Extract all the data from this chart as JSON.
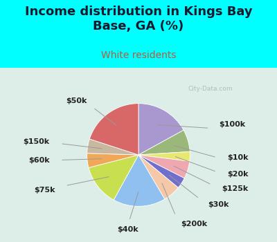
{
  "title": "Income distribution in Kings Bay\nBase, GA (%)",
  "subtitle": "White residents",
  "bg_color": "#00FFFF",
  "chart_bg_top": "#e0f0ee",
  "chart_bg_bottom": "#f5faf5",
  "title_color": "#1a1a2e",
  "subtitle_color": "#b06040",
  "watermark": "City-Data.com",
  "labels": [
    "$100k",
    "$10k",
    "$20k",
    "$125k",
    "$30k",
    "$200k",
    "$40k",
    "$75k",
    "$60k",
    "$150k",
    "$50k"
  ],
  "sizes": [
    17.0,
    7.0,
    3.0,
    5.5,
    3.5,
    5.5,
    16.5,
    13.0,
    4.5,
    4.5,
    20.0
  ],
  "colors": [
    "#a998d0",
    "#9ab87a",
    "#e8e870",
    "#f0a8b0",
    "#7070cc",
    "#f5c8a8",
    "#90c0f0",
    "#c8e050",
    "#f0a858",
    "#c8b8a0",
    "#d86868"
  ],
  "startangle": 90,
  "title_fontsize": 13,
  "subtitle_fontsize": 10,
  "label_fontsize": 8,
  "label_color": "#222222",
  "line_color": "#999999"
}
